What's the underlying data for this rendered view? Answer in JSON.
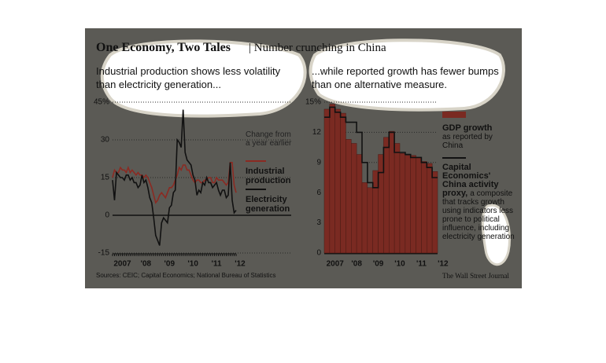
{
  "title": "One Economy, Two Tales",
  "subtitle": "| Number crunching in China",
  "source": "Sources: CEIC; Capital Economics; National Bureau of Statistics",
  "credit": "The Wall Street Journal",
  "chart_data": [
    {
      "type": "line",
      "title": "Industrial production shows less volatility than electricity generation...",
      "note": "Change from a year earlier",
      "categories": [
        "2007",
        null,
        null,
        null,
        null,
        null,
        null,
        null,
        null,
        null,
        null,
        null,
        "'08",
        null,
        null,
        null,
        null,
        null,
        null,
        null,
        null,
        null,
        null,
        null,
        "'09",
        null,
        null,
        null,
        null,
        null,
        null,
        null,
        null,
        null,
        null,
        null,
        "'10",
        null,
        null,
        null,
        null,
        null,
        null,
        null,
        null,
        null,
        null,
        null,
        "'11",
        null,
        null,
        null,
        null,
        null,
        null,
        null,
        null,
        null,
        null,
        null,
        "'12",
        null,
        null,
        null
      ],
      "series": [
        {
          "name": "Industrial production",
          "color": "#8b2a22",
          "values": [
            15,
            18,
            17,
            17,
            19,
            18,
            18,
            17,
            19,
            17,
            18,
            17,
            16,
            17,
            16,
            16,
            15,
            16,
            15,
            13,
            11,
            8,
            5,
            6,
            8,
            9,
            8,
            7,
            9,
            11,
            11,
            12,
            14,
            16,
            19,
            18,
            20,
            20,
            18,
            18,
            16,
            14,
            13,
            14,
            14,
            13,
            13,
            14,
            14,
            15,
            15,
            13,
            13,
            15,
            14,
            14,
            14,
            13,
            12,
            13,
            21,
            21,
            12,
            9
          ]
        },
        {
          "name": "Electricity generation",
          "color": "#111111",
          "values": [
            14,
            6,
            17,
            16,
            15,
            15,
            14,
            16,
            16,
            14,
            15,
            13,
            13,
            11,
            12,
            16,
            13,
            14,
            11,
            7,
            5,
            -1,
            -8,
            -10,
            -12,
            -3,
            -1,
            -2,
            -3,
            3,
            4,
            9,
            10,
            30,
            29,
            27,
            42,
            25,
            22,
            21,
            20,
            16,
            14,
            8,
            10,
            9,
            13,
            12,
            15,
            13,
            13,
            11,
            12,
            13,
            10,
            8,
            10,
            10,
            7,
            8,
            21,
            6,
            1,
            2
          ]
        }
      ],
      "ylim": [
        -15,
        45
      ],
      "yticks": [
        -15,
        0,
        15,
        30,
        {
          "value": 45,
          "label": "45%"
        }
      ],
      "grid": true
    },
    {
      "type": "bar",
      "title": "...while reported growth has fewer bumps than one alternative measure.",
      "categories": [
        "2007",
        null,
        null,
        null,
        "'08",
        null,
        null,
        null,
        "'09",
        null,
        null,
        null,
        "'10",
        null,
        null,
        null,
        "'11",
        null,
        null,
        null,
        "'12"
      ],
      "series": [
        {
          "name": "GDP growth",
          "description": "as reported by China",
          "style": "bar",
          "color": "#7a2a22",
          "values": [
            14.3,
            14.8,
            14.3,
            13.9,
            11.3,
            10.9,
            9.8,
            7.0,
            6.5,
            8.2,
            9.8,
            11.5,
            12.1,
            10.9,
            9.9,
            9.7,
            9.7,
            9.5,
            9.1,
            8.9,
            8.1
          ]
        },
        {
          "name": "Capital Economics' China activity proxy,",
          "description": "a composite that tracks growth using indicators less prone to political influence, including electricity generation",
          "style": "step",
          "color": "#111111",
          "values": [
            13.5,
            14.5,
            14,
            13.5,
            13,
            13,
            12,
            9,
            7,
            6.5,
            8,
            10.5,
            12,
            10,
            10,
            9.8,
            9.5,
            9.5,
            9,
            8.5,
            7.5
          ]
        }
      ],
      "ylim": [
        0,
        15
      ],
      "yticks": [
        0,
        3,
        6,
        9,
        12,
        {
          "value": 15,
          "label": "15%"
        }
      ],
      "grid": true
    }
  ]
}
